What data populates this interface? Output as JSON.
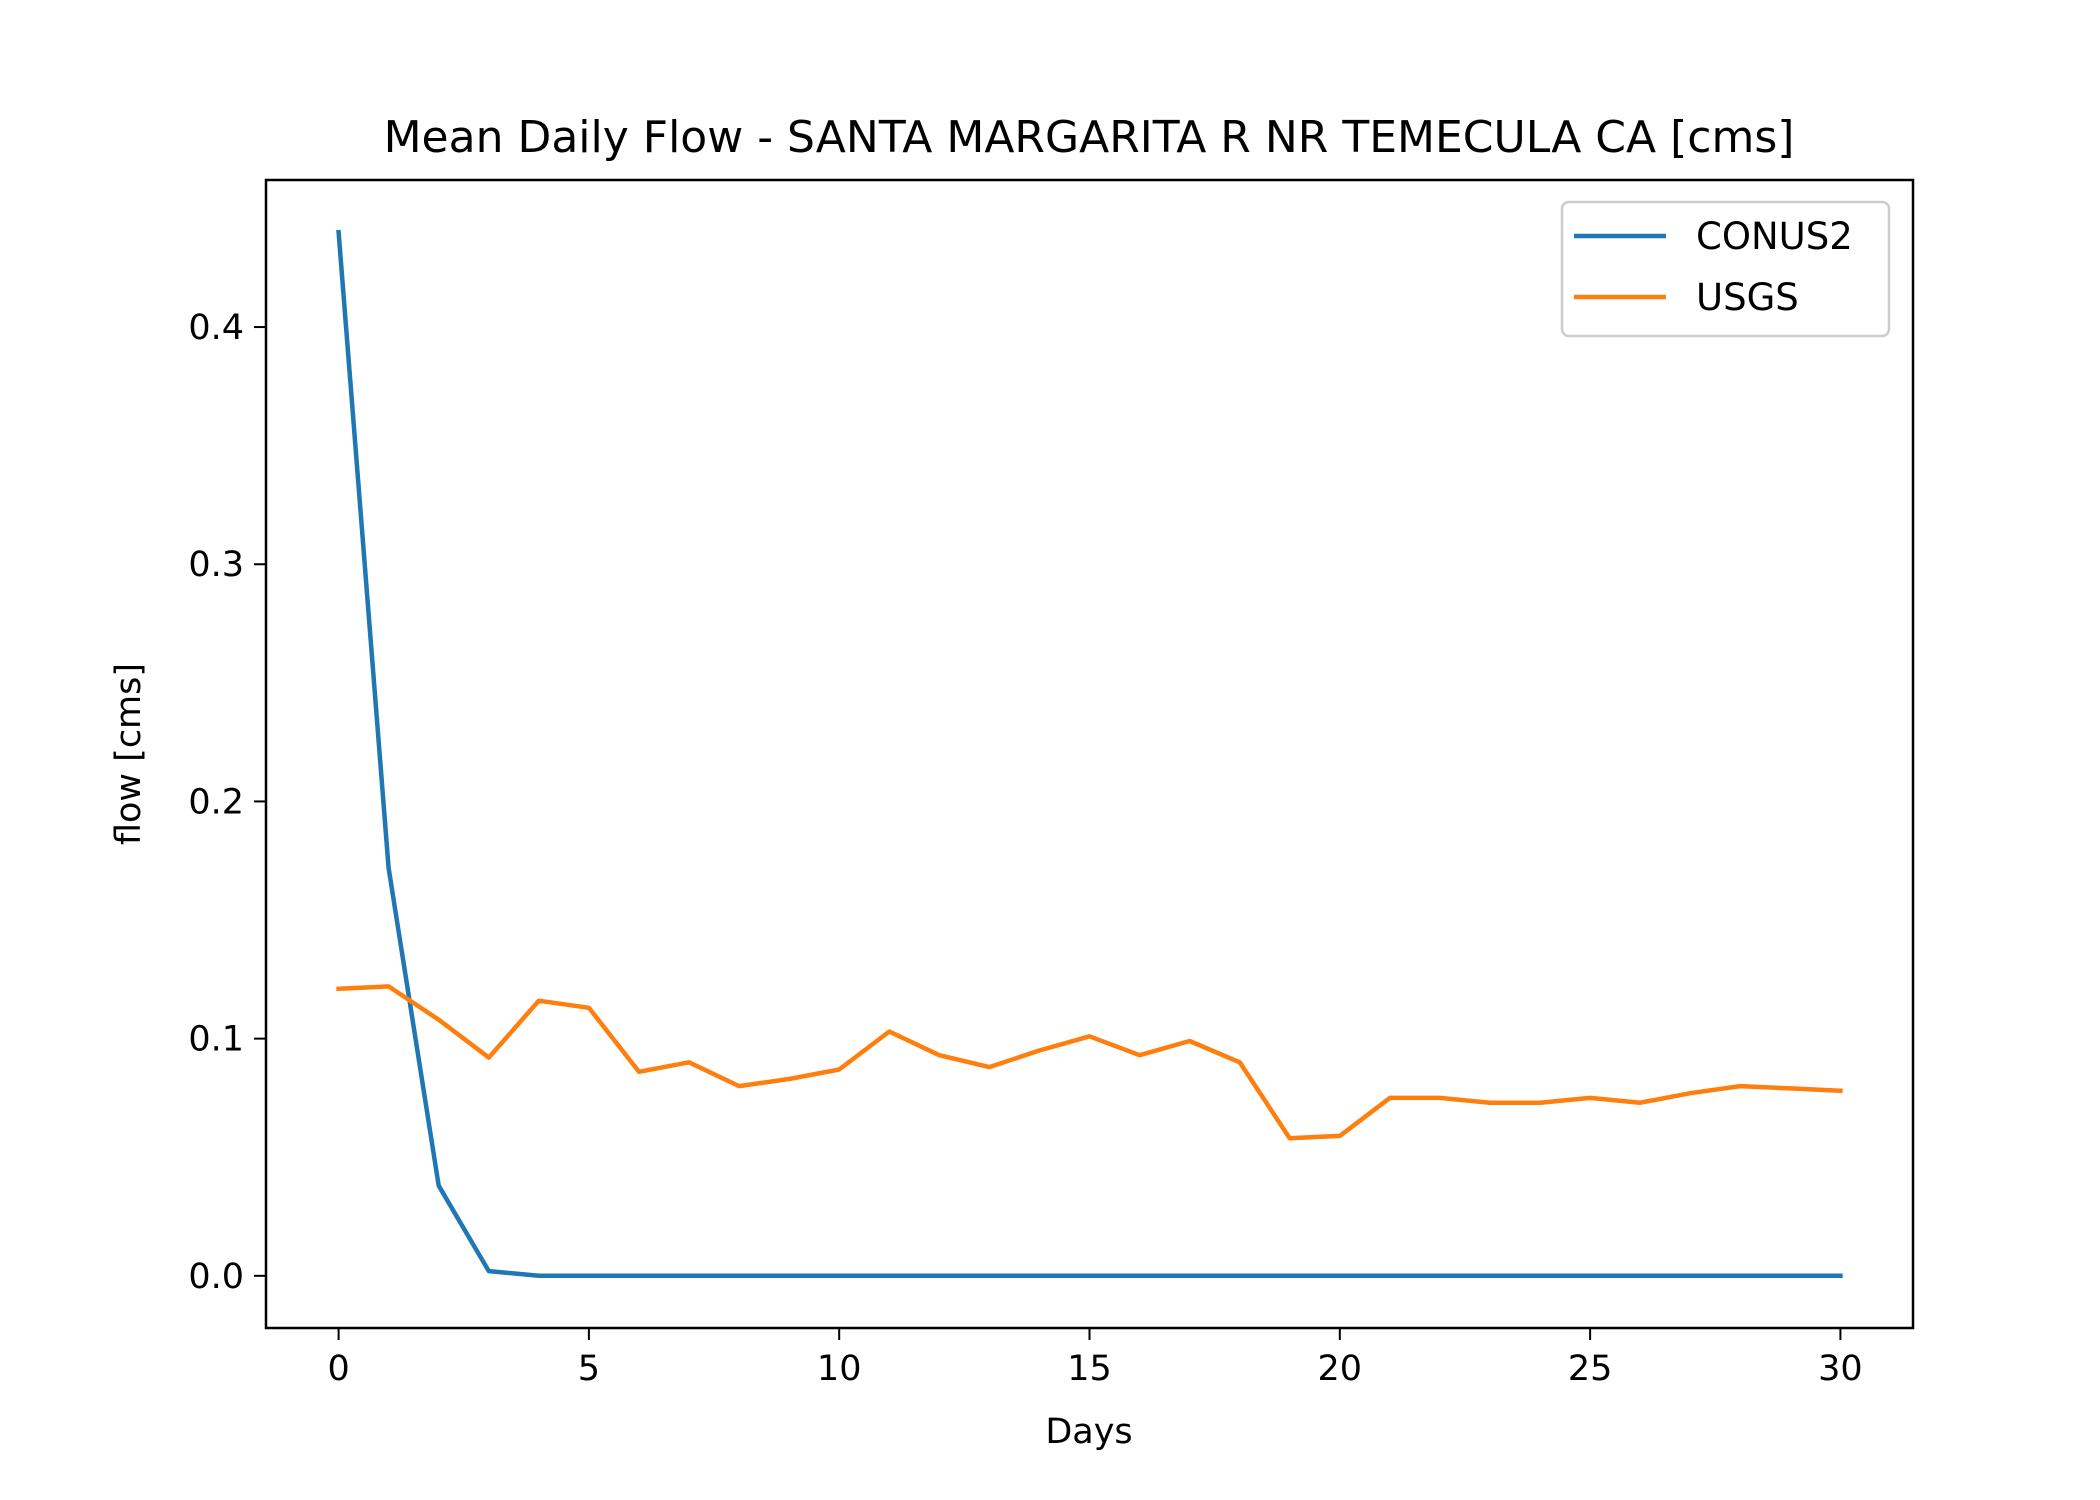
{
  "chart_data": {
    "type": "line",
    "title": "Mean Daily Flow - SANTA MARGARITA R NR TEMECULA CA [cms]",
    "xlabel": "Days",
    "ylabel": "flow [cms]",
    "xlim": [
      -1.45,
      31.45
    ],
    "ylim": [
      -0.022,
      0.462
    ],
    "xticks": [
      0,
      5,
      10,
      15,
      20,
      25,
      30
    ],
    "xtick_labels": [
      "0",
      "5",
      "10",
      "15",
      "20",
      "25",
      "30"
    ],
    "yticks": [
      0.0,
      0.1,
      0.2,
      0.3,
      0.4
    ],
    "ytick_labels": [
      "0.0",
      "0.1",
      "0.2",
      "0.3",
      "0.4"
    ],
    "grid": false,
    "legend": {
      "placement": "top-right"
    },
    "x": [
      0,
      1,
      2,
      3,
      4,
      5,
      6,
      7,
      8,
      9,
      10,
      11,
      12,
      13,
      14,
      15,
      16,
      17,
      18,
      19,
      20,
      21,
      22,
      23,
      24,
      25,
      26,
      27,
      28,
      29,
      30
    ],
    "series": [
      {
        "name": "CONUS2",
        "color": "#1f77b4",
        "values": [
          0.44,
          0.172,
          0.038,
          0.002,
          0.0,
          0.0,
          0.0,
          0.0,
          0.0,
          0.0,
          0.0,
          0.0,
          0.0,
          0.0,
          0.0,
          0.0,
          0.0,
          0.0,
          0.0,
          0.0,
          0.0,
          0.0,
          0.0,
          0.0,
          0.0,
          0.0,
          0.0,
          0.0,
          0.0,
          0.0,
          0.0
        ]
      },
      {
        "name": "USGS",
        "color": "#ff7f0e",
        "values": [
          0.121,
          0.122,
          0.108,
          0.092,
          0.116,
          0.113,
          0.086,
          0.09,
          0.08,
          0.083,
          0.087,
          0.103,
          0.093,
          0.088,
          0.095,
          0.101,
          0.093,
          0.099,
          0.09,
          0.058,
          0.059,
          0.075,
          0.075,
          0.073,
          0.073,
          0.075,
          0.073,
          0.077,
          0.08,
          0.079,
          0.078
        ]
      }
    ]
  }
}
